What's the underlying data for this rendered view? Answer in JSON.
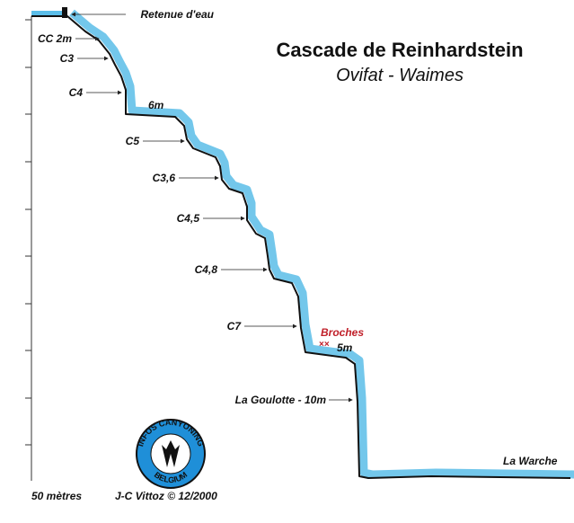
{
  "header": {
    "title": "Cascade de Reinhardstein",
    "subtitle": "Ovifat - Waimes"
  },
  "top_label": "Retenue d'eau",
  "labels": [
    "CC 2m",
    "C3",
    "C4",
    "6m",
    "C5",
    "C3,6",
    "C4,5",
    "C4,8",
    "C7",
    "5m",
    "La Goulotte - 10m"
  ],
  "anchor_label": "Broches",
  "anchor_marks": "××",
  "end_label": "La Warche",
  "scale_label": "50 mètres",
  "credit": "J-C Vittoz © 12/2000",
  "logo": {
    "top": "INFOS CANYONING",
    "bottom": "BELGIUM"
  }
}
